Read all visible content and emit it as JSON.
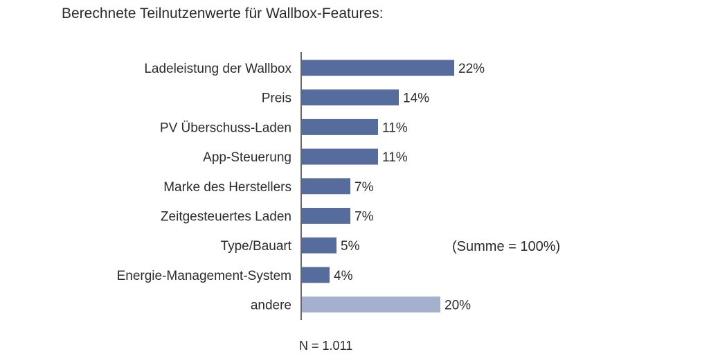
{
  "chart_data": {
    "type": "bar",
    "orientation": "horizontal",
    "title": "Berechnete Teilnutzenwerte für Wallbox-Features:",
    "categories": [
      "Ladeleistung der Wallbox",
      "Preis",
      "PV Überschuss-Laden",
      "App-Steuerung",
      "Marke des Herstellers",
      "Zeitgesteuertes Laden",
      "Type/Bauart",
      "Energie-Management-System",
      "andere"
    ],
    "values": [
      22,
      14,
      11,
      11,
      7,
      7,
      5,
      4,
      20
    ],
    "value_labels": [
      "22%",
      "14%",
      "11%",
      "11%",
      "7%",
      "7%",
      "5%",
      "4%",
      "20%"
    ],
    "xlim": [
      0,
      25
    ],
    "grid": false,
    "colors": {
      "primary": "#566c9c",
      "other": "#a3b1cf",
      "axis": "#333333"
    },
    "annotations": {
      "sum_note": "(Summe = 100%)",
      "sample_size": "N = 1.011"
    }
  }
}
